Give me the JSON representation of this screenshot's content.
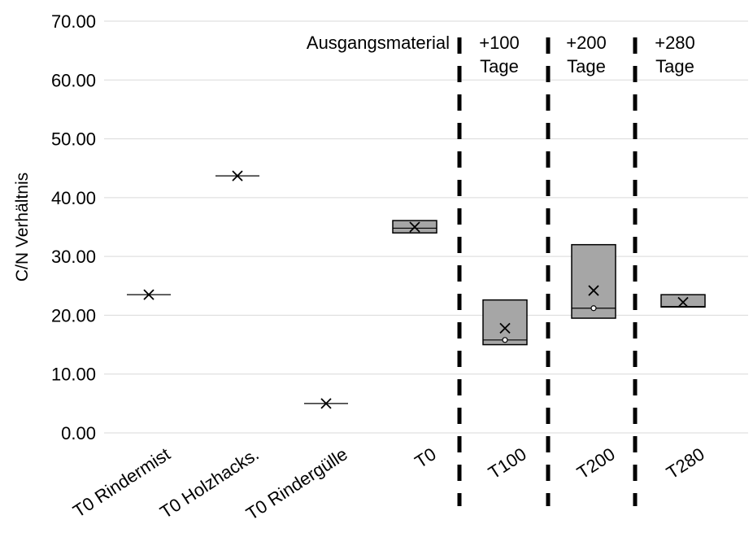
{
  "chart_data": {
    "type": "box",
    "title": "",
    "xlabel": "",
    "ylabel": "C/N Verhältnis",
    "ylim": [
      0,
      70
    ],
    "yticks": [
      "0.00",
      "10.00",
      "20.00",
      "30.00",
      "40.00",
      "50.00",
      "60.00",
      "70.00"
    ],
    "grid": "horizontal",
    "categories": [
      "T0 Rindermist",
      "T0 Holzhacks.",
      "T0 Rindergülle",
      "T0",
      "T100",
      "T200",
      "T280"
    ],
    "boxes": [
      {
        "category": "T0 Rindermist",
        "q1": 23.5,
        "median": 23.5,
        "q3": 23.5,
        "mean": 23.5
      },
      {
        "category": "T0 Holzhacks.",
        "q1": 43.7,
        "median": 43.7,
        "q3": 43.7,
        "mean": 43.7
      },
      {
        "category": "T0 Rindergülle",
        "q1": 5.0,
        "median": 5.0,
        "q3": 5.0,
        "mean": 5.0
      },
      {
        "category": "T0",
        "q1": 34.0,
        "median": 34.8,
        "q3": 36.1,
        "mean": 35.0
      },
      {
        "category": "T100",
        "q1": 15.0,
        "median": 15.8,
        "q3": 22.6,
        "mean": 17.8,
        "point": 15.8
      },
      {
        "category": "T200",
        "q1": 19.5,
        "median": 21.2,
        "q3": 32.0,
        "mean": 24.2,
        "point": 21.2
      },
      {
        "category": "T280",
        "q1": 21.4,
        "median": 21.5,
        "q3": 23.5,
        "mean": 22.2
      }
    ],
    "box_color": "#a6a6a6",
    "separators_after": [
      "T0",
      "T100",
      "T200"
    ],
    "annotations": [
      "Ausgangsmaterial",
      "+100\nTage",
      "+200\nTage",
      "+280\nTage"
    ]
  }
}
